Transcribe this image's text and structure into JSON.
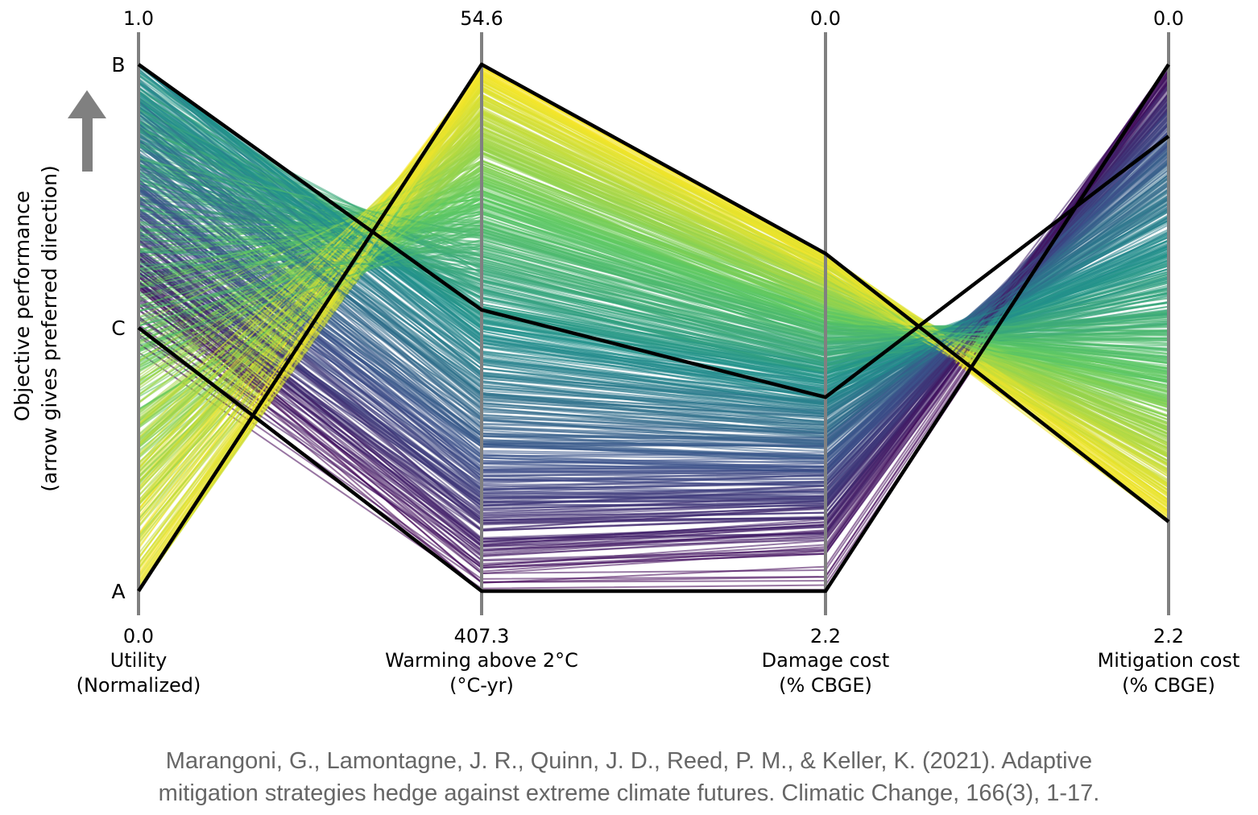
{
  "chart_data": {
    "type": "parallel-coordinates",
    "ylabel": [
      "Objective performance",
      "(arrow gives preferred direction)"
    ],
    "colormap": "viridis",
    "color_by": "Warming above 2°C",
    "axes": [
      {
        "label": [
          "Utility",
          "(Normalized)"
        ],
        "top": 1.0,
        "bottom": 0.0,
        "top_label": "1.0",
        "bottom_label": "0.0"
      },
      {
        "label": [
          "Warming above 2°C",
          "(°C-yr)"
        ],
        "top": 54.6,
        "bottom": 407.3,
        "top_label": "54.6",
        "bottom_label": "407.3"
      },
      {
        "label": [
          "Damage cost",
          "(% CBGE)"
        ],
        "top": 0.0,
        "bottom": 2.2,
        "top_label": "0.0",
        "bottom_label": "2.2"
      },
      {
        "label": [
          "Mitigation cost",
          "(% CBGE)"
        ],
        "top": 0.0,
        "bottom": 2.2,
        "top_label": "0.0",
        "bottom_label": "2.2"
      }
    ],
    "highlighted": [
      {
        "name": "A",
        "values": [
          0.0,
          54.6,
          0.79,
          1.91
        ]
      },
      {
        "name": "B",
        "values": [
          1.0,
          219.0,
          1.39,
          0.3
        ]
      },
      {
        "name": "C",
        "values": [
          0.5,
          407.3,
          2.2,
          0.0
        ]
      }
    ],
    "highlight_color": "#000000",
    "axis_color": "#808080",
    "arrow_color": "#808080"
  },
  "citation": [
    "Marangoni, G., Lamontagne, J. R., Quinn, J. D., Reed, P. M., & Keller, K. (2021). Adaptive",
    "mitigation strategies hedge against extreme climate futures. Climatic Change, 166(3), 1-17."
  ]
}
